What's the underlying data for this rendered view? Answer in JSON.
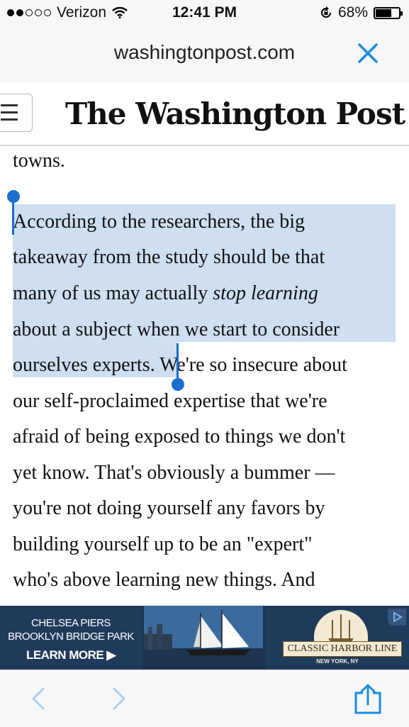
{
  "status_bar": {
    "carrier": "Verizon",
    "time": "12:41 PM",
    "battery_percent": "68%",
    "battery_level": 0.68,
    "signal_bars": 2
  },
  "url_bar": {
    "url": "washingtonpost.com",
    "close_icon": "close-icon"
  },
  "masthead": {
    "logo_text": "The Washington Post",
    "menu_icon": "hamburger-menu-icon"
  },
  "article": {
    "lines": [
      "towns.",
      "According to the researchers, the big",
      "takeaway from the study should be that",
      "many of us may actually ",
      "stop learning",
      "about a subject when we start to consider",
      "ourselves experts.",
      " We're so insecure about",
      "our self-proclaimed expertise that we're",
      "afraid of being exposed to things we don't",
      "yet know. That's obviously a bummer —",
      "you're not doing yourself any favors by",
      "building yourself up to be an \"expert\"",
      "who's above learning new things. And"
    ]
  },
  "ad": {
    "left_line1": "CHELSEA PIERS",
    "left_line2": "BROOKLYN BRIDGE PARK",
    "cta": "LEARN MORE ▶",
    "brand": "CLASSIC HARBOR LINE",
    "brand_sub": "NEW YORK, NY"
  },
  "colors": {
    "selection": "#cddff0",
    "selection_handle": "#1a6fd1",
    "ios_blue": "#1a8be0"
  }
}
